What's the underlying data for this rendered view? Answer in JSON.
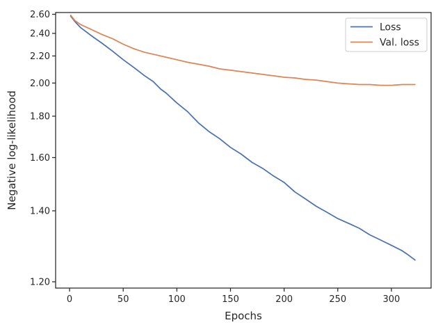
{
  "chart_data": {
    "type": "line",
    "xlabel": "Epochs",
    "ylabel": "Negative log-likelihood",
    "xlim": [
      -13,
      337
    ],
    "ylim": [
      1.185,
      2.62
    ],
    "y_scale": "reciprocal",
    "x_ticks": [
      0,
      50,
      100,
      150,
      200,
      250,
      300
    ],
    "y_ticks": [
      1.2,
      1.4,
      1.6,
      1.8,
      2.0,
      2.2,
      2.4,
      2.6
    ],
    "y_tick_labels": [
      "1.20",
      "1.40",
      "1.60",
      "1.80",
      "2.00",
      "2.20",
      "2.40",
      "2.60"
    ],
    "grid": false,
    "legend_position": "top-right",
    "series": [
      {
        "name": "Loss",
        "color": "#4c72b0",
        "x": [
          1,
          5,
          10,
          20,
          30,
          40,
          50,
          60,
          70,
          78,
          85,
          90,
          100,
          110,
          120,
          130,
          140,
          150,
          160,
          170,
          180,
          190,
          200,
          210,
          220,
          230,
          240,
          250,
          260,
          270,
          280,
          290,
          300,
          310,
          315,
          322
        ],
        "y": [
          2.58,
          2.52,
          2.46,
          2.38,
          2.31,
          2.24,
          2.17,
          2.11,
          2.05,
          2.01,
          1.96,
          1.935,
          1.875,
          1.825,
          1.765,
          1.72,
          1.685,
          1.645,
          1.615,
          1.58,
          1.555,
          1.525,
          1.5,
          1.465,
          1.44,
          1.415,
          1.395,
          1.375,
          1.36,
          1.345,
          1.325,
          1.31,
          1.295,
          1.28,
          1.27,
          1.255
        ]
      },
      {
        "name": "Val. loss",
        "color": "#dd8452",
        "x": [
          1,
          5,
          10,
          20,
          30,
          40,
          50,
          60,
          70,
          80,
          90,
          100,
          110,
          120,
          130,
          140,
          150,
          160,
          170,
          180,
          190,
          200,
          210,
          220,
          230,
          240,
          250,
          260,
          270,
          280,
          290,
          300,
          310,
          322
        ],
        "y": [
          2.59,
          2.53,
          2.49,
          2.44,
          2.39,
          2.35,
          2.3,
          2.26,
          2.23,
          2.21,
          2.19,
          2.17,
          2.15,
          2.135,
          2.12,
          2.1,
          2.09,
          2.08,
          2.07,
          2.06,
          2.05,
          2.04,
          2.035,
          2.025,
          2.02,
          2.01,
          2.0,
          1.995,
          1.99,
          1.99,
          1.985,
          1.985,
          1.99,
          1.99
        ]
      }
    ]
  }
}
